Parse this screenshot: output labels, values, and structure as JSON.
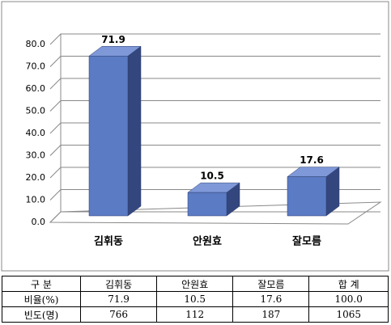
{
  "chart_data": {
    "type": "bar3d",
    "categories": [
      "김휘동",
      "안원효",
      "잘모름"
    ],
    "values": [
      71.9,
      10.5,
      17.6
    ],
    "color": "#5b7bc4",
    "ylim": [
      0,
      80
    ],
    "yticks": [
      {
        "value": 0,
        "label": "0.0"
      },
      {
        "value": 10,
        "label": "10.0"
      },
      {
        "value": 20,
        "label": "20.0"
      },
      {
        "value": 30,
        "label": "30.0"
      },
      {
        "value": 40,
        "label": "40.0"
      },
      {
        "value": 50,
        "label": "50.0"
      },
      {
        "value": 60,
        "label": "60.0"
      },
      {
        "value": 70,
        "label": "70.0"
      },
      {
        "value": 80,
        "label": "80.0"
      }
    ],
    "grid": true
  },
  "table": {
    "header": [
      "구 분",
      "김휘동",
      "안원효",
      "잘모름",
      "합 계"
    ],
    "rows": [
      [
        "비율(%)",
        "71.9",
        "10.5",
        "17.6",
        "100.0"
      ],
      [
        "빈도(명)",
        "766",
        "112",
        "187",
        "1065"
      ]
    ]
  }
}
